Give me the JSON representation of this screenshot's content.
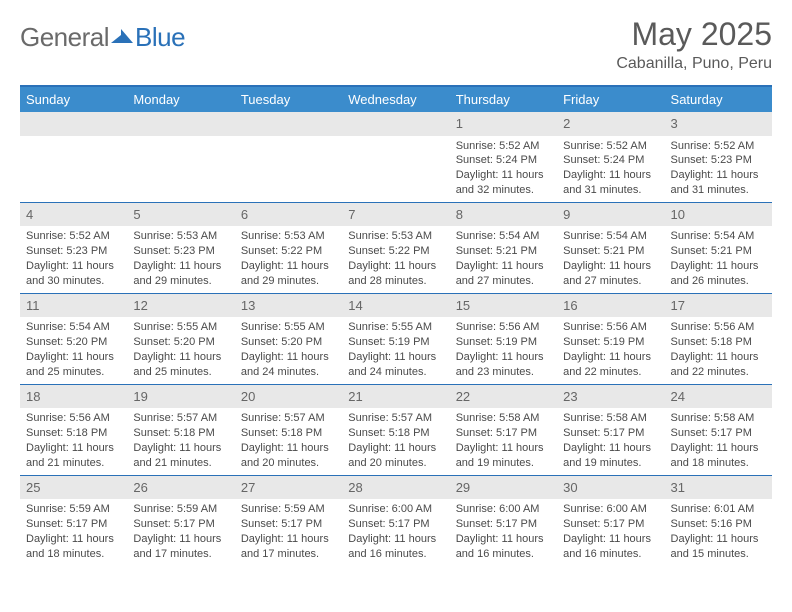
{
  "brand": {
    "word1": "General",
    "word2": "Blue"
  },
  "title": "May 2025",
  "location": "Cabanilla, Puno, Peru",
  "header_bg": "#3b8ccc",
  "border_color": "#2a71b8",
  "daynum_bg": "#e8e8e8",
  "text_color": "#4a4a4a",
  "days": [
    "Sunday",
    "Monday",
    "Tuesday",
    "Wednesday",
    "Thursday",
    "Friday",
    "Saturday"
  ],
  "weeks": [
    [
      {
        "n": "",
        "sunrise": "",
        "sunset": "",
        "daylight": ""
      },
      {
        "n": "",
        "sunrise": "",
        "sunset": "",
        "daylight": ""
      },
      {
        "n": "",
        "sunrise": "",
        "sunset": "",
        "daylight": ""
      },
      {
        "n": "",
        "sunrise": "",
        "sunset": "",
        "daylight": ""
      },
      {
        "n": "1",
        "sunrise": "Sunrise: 5:52 AM",
        "sunset": "Sunset: 5:24 PM",
        "daylight": "Daylight: 11 hours and 32 minutes."
      },
      {
        "n": "2",
        "sunrise": "Sunrise: 5:52 AM",
        "sunset": "Sunset: 5:24 PM",
        "daylight": "Daylight: 11 hours and 31 minutes."
      },
      {
        "n": "3",
        "sunrise": "Sunrise: 5:52 AM",
        "sunset": "Sunset: 5:23 PM",
        "daylight": "Daylight: 11 hours and 31 minutes."
      }
    ],
    [
      {
        "n": "4",
        "sunrise": "Sunrise: 5:52 AM",
        "sunset": "Sunset: 5:23 PM",
        "daylight": "Daylight: 11 hours and 30 minutes."
      },
      {
        "n": "5",
        "sunrise": "Sunrise: 5:53 AM",
        "sunset": "Sunset: 5:23 PM",
        "daylight": "Daylight: 11 hours and 29 minutes."
      },
      {
        "n": "6",
        "sunrise": "Sunrise: 5:53 AM",
        "sunset": "Sunset: 5:22 PM",
        "daylight": "Daylight: 11 hours and 29 minutes."
      },
      {
        "n": "7",
        "sunrise": "Sunrise: 5:53 AM",
        "sunset": "Sunset: 5:22 PM",
        "daylight": "Daylight: 11 hours and 28 minutes."
      },
      {
        "n": "8",
        "sunrise": "Sunrise: 5:54 AM",
        "sunset": "Sunset: 5:21 PM",
        "daylight": "Daylight: 11 hours and 27 minutes."
      },
      {
        "n": "9",
        "sunrise": "Sunrise: 5:54 AM",
        "sunset": "Sunset: 5:21 PM",
        "daylight": "Daylight: 11 hours and 27 minutes."
      },
      {
        "n": "10",
        "sunrise": "Sunrise: 5:54 AM",
        "sunset": "Sunset: 5:21 PM",
        "daylight": "Daylight: 11 hours and 26 minutes."
      }
    ],
    [
      {
        "n": "11",
        "sunrise": "Sunrise: 5:54 AM",
        "sunset": "Sunset: 5:20 PM",
        "daylight": "Daylight: 11 hours and 25 minutes."
      },
      {
        "n": "12",
        "sunrise": "Sunrise: 5:55 AM",
        "sunset": "Sunset: 5:20 PM",
        "daylight": "Daylight: 11 hours and 25 minutes."
      },
      {
        "n": "13",
        "sunrise": "Sunrise: 5:55 AM",
        "sunset": "Sunset: 5:20 PM",
        "daylight": "Daylight: 11 hours and 24 minutes."
      },
      {
        "n": "14",
        "sunrise": "Sunrise: 5:55 AM",
        "sunset": "Sunset: 5:19 PM",
        "daylight": "Daylight: 11 hours and 24 minutes."
      },
      {
        "n": "15",
        "sunrise": "Sunrise: 5:56 AM",
        "sunset": "Sunset: 5:19 PM",
        "daylight": "Daylight: 11 hours and 23 minutes."
      },
      {
        "n": "16",
        "sunrise": "Sunrise: 5:56 AM",
        "sunset": "Sunset: 5:19 PM",
        "daylight": "Daylight: 11 hours and 22 minutes."
      },
      {
        "n": "17",
        "sunrise": "Sunrise: 5:56 AM",
        "sunset": "Sunset: 5:18 PM",
        "daylight": "Daylight: 11 hours and 22 minutes."
      }
    ],
    [
      {
        "n": "18",
        "sunrise": "Sunrise: 5:56 AM",
        "sunset": "Sunset: 5:18 PM",
        "daylight": "Daylight: 11 hours and 21 minutes."
      },
      {
        "n": "19",
        "sunrise": "Sunrise: 5:57 AM",
        "sunset": "Sunset: 5:18 PM",
        "daylight": "Daylight: 11 hours and 21 minutes."
      },
      {
        "n": "20",
        "sunrise": "Sunrise: 5:57 AM",
        "sunset": "Sunset: 5:18 PM",
        "daylight": "Daylight: 11 hours and 20 minutes."
      },
      {
        "n": "21",
        "sunrise": "Sunrise: 5:57 AM",
        "sunset": "Sunset: 5:18 PM",
        "daylight": "Daylight: 11 hours and 20 minutes."
      },
      {
        "n": "22",
        "sunrise": "Sunrise: 5:58 AM",
        "sunset": "Sunset: 5:17 PM",
        "daylight": "Daylight: 11 hours and 19 minutes."
      },
      {
        "n": "23",
        "sunrise": "Sunrise: 5:58 AM",
        "sunset": "Sunset: 5:17 PM",
        "daylight": "Daylight: 11 hours and 19 minutes."
      },
      {
        "n": "24",
        "sunrise": "Sunrise: 5:58 AM",
        "sunset": "Sunset: 5:17 PM",
        "daylight": "Daylight: 11 hours and 18 minutes."
      }
    ],
    [
      {
        "n": "25",
        "sunrise": "Sunrise: 5:59 AM",
        "sunset": "Sunset: 5:17 PM",
        "daylight": "Daylight: 11 hours and 18 minutes."
      },
      {
        "n": "26",
        "sunrise": "Sunrise: 5:59 AM",
        "sunset": "Sunset: 5:17 PM",
        "daylight": "Daylight: 11 hours and 17 minutes."
      },
      {
        "n": "27",
        "sunrise": "Sunrise: 5:59 AM",
        "sunset": "Sunset: 5:17 PM",
        "daylight": "Daylight: 11 hours and 17 minutes."
      },
      {
        "n": "28",
        "sunrise": "Sunrise: 6:00 AM",
        "sunset": "Sunset: 5:17 PM",
        "daylight": "Daylight: 11 hours and 16 minutes."
      },
      {
        "n": "29",
        "sunrise": "Sunrise: 6:00 AM",
        "sunset": "Sunset: 5:17 PM",
        "daylight": "Daylight: 11 hours and 16 minutes."
      },
      {
        "n": "30",
        "sunrise": "Sunrise: 6:00 AM",
        "sunset": "Sunset: 5:17 PM",
        "daylight": "Daylight: 11 hours and 16 minutes."
      },
      {
        "n": "31",
        "sunrise": "Sunrise: 6:01 AM",
        "sunset": "Sunset: 5:16 PM",
        "daylight": "Daylight: 11 hours and 15 minutes."
      }
    ]
  ]
}
